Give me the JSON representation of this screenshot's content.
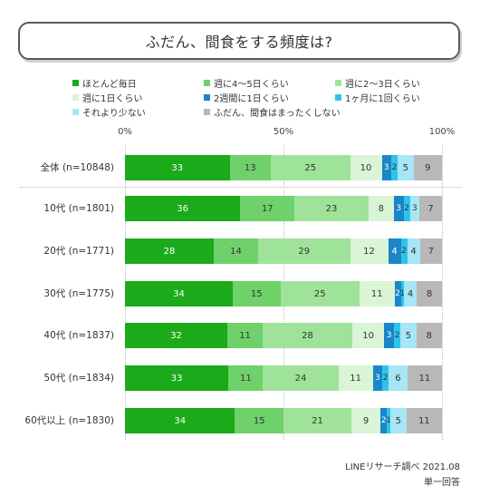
{
  "title": "ふだん、間食をする頻度は?",
  "source": "LINEリサーチ調べ 2021.08",
  "note": "単一回答",
  "chart_data": {
    "type": "bar",
    "orientation": "horizontal",
    "stacked": true,
    "percent": true,
    "xlim": [
      0,
      100
    ],
    "x_ticks": [
      "0%",
      "50%",
      "100%"
    ],
    "categories": [
      "全体 (n=10848)",
      "10代 (n=1801)",
      "20代 (n=1771)",
      "30代 (n=1775)",
      "40代 (n=1837)",
      "50代 (n=1834)",
      "60代以上 (n=1830)"
    ],
    "series": [
      {
        "name": "ほとんど毎日",
        "color": "#1aaa1a",
        "values": [
          33,
          36,
          28,
          34,
          32,
          33,
          34
        ]
      },
      {
        "name": "週に4〜5日くらい",
        "color": "#6fd16a",
        "values": [
          13,
          17,
          14,
          15,
          11,
          11,
          15
        ]
      },
      {
        "name": "週に2〜3日くらい",
        "color": "#9fe39a",
        "values": [
          25,
          23,
          29,
          25,
          28,
          24,
          21
        ]
      },
      {
        "name": "週に1日くらい",
        "color": "#d9f5d6",
        "values": [
          10,
          8,
          12,
          11,
          10,
          11,
          9
        ]
      },
      {
        "name": "2週間に1日くらい",
        "color": "#1a86c8",
        "values": [
          3,
          3,
          4,
          2,
          3,
          3,
          2
        ]
      },
      {
        "name": "1ヶ月に1回くらい",
        "color": "#2fc3ec",
        "values": [
          2,
          2,
          2,
          1,
          2,
          2,
          1
        ]
      },
      {
        "name": "それより少ない",
        "color": "#a6e6f6",
        "values": [
          5,
          3,
          4,
          4,
          5,
          6,
          5
        ]
      },
      {
        "name": "ふだん、間食はまったくしない",
        "color": "#b8b8b8",
        "values": [
          9,
          7,
          7,
          8,
          8,
          11,
          11
        ]
      }
    ]
  }
}
